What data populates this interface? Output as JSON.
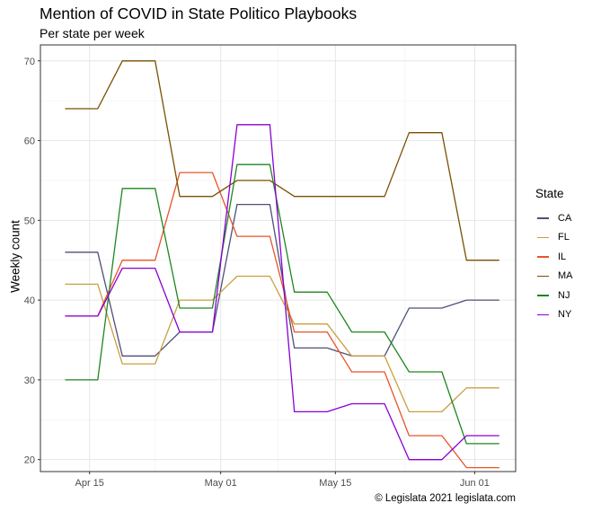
{
  "chart_data": {
    "type": "line",
    "title": "Mention of COVID in State Politico Playbooks",
    "subtitle": "Per state per week",
    "xlabel": "",
    "ylabel": "Weekly count",
    "caption": "© Legislata 2021 legislata.com",
    "grid": true,
    "legend_position": "right",
    "legend_title": "State",
    "x": [
      "2021-04-12",
      "2021-04-16",
      "2021-04-19",
      "2021-04-23",
      "2021-04-26",
      "2021-04-30",
      "2021-05-03",
      "2021-05-07",
      "2021-05-10",
      "2021-05-14",
      "2021-05-17",
      "2021-05-21",
      "2021-05-24",
      "2021-05-28",
      "2021-05-31",
      "2021-06-04"
    ],
    "xlim": [
      "2021-04-09",
      "2021-06-06"
    ],
    "x_ticks": [
      {
        "date": "2021-04-15",
        "label": "Apr 15"
      },
      {
        "date": "2021-05-01",
        "label": "May 01"
      },
      {
        "date": "2021-05-15",
        "label": "May 15"
      },
      {
        "date": "2021-06-01",
        "label": "Jun 01"
      }
    ],
    "ylim": [
      18.5,
      72
    ],
    "y_ticks": [
      20,
      30,
      40,
      50,
      60,
      70
    ],
    "series": [
      {
        "name": "CA",
        "color": "#4d5078",
        "values": [
          46,
          46,
          33,
          33,
          36,
          36,
          52,
          52,
          34,
          34,
          33,
          33,
          39,
          39,
          40,
          40
        ]
      },
      {
        "name": "FL",
        "color": "#c8a040",
        "values": [
          42,
          42,
          32,
          32,
          40,
          40,
          43,
          43,
          37,
          37,
          33,
          33,
          26,
          26,
          29,
          29
        ]
      },
      {
        "name": "IL",
        "color": "#e8542a",
        "values": [
          38,
          38,
          45,
          45,
          56,
          56,
          48,
          48,
          36,
          36,
          31,
          31,
          23,
          23,
          19,
          19
        ]
      },
      {
        "name": "MA",
        "color": "#7a5000",
        "values": [
          64,
          64,
          70,
          70,
          53,
          53,
          55,
          55,
          53,
          53,
          53,
          53,
          61,
          61,
          45,
          45
        ]
      },
      {
        "name": "NJ",
        "color": "#1e861e",
        "values": [
          30,
          30,
          54,
          54,
          39,
          39,
          57,
          57,
          41,
          41,
          36,
          36,
          31,
          31,
          22,
          22
        ]
      },
      {
        "name": "NY",
        "color": "#8a00d4",
        "values": [
          38,
          38,
          44,
          44,
          36,
          36,
          62,
          62,
          26,
          26,
          27,
          27,
          20,
          20,
          23,
          23
        ]
      }
    ]
  }
}
